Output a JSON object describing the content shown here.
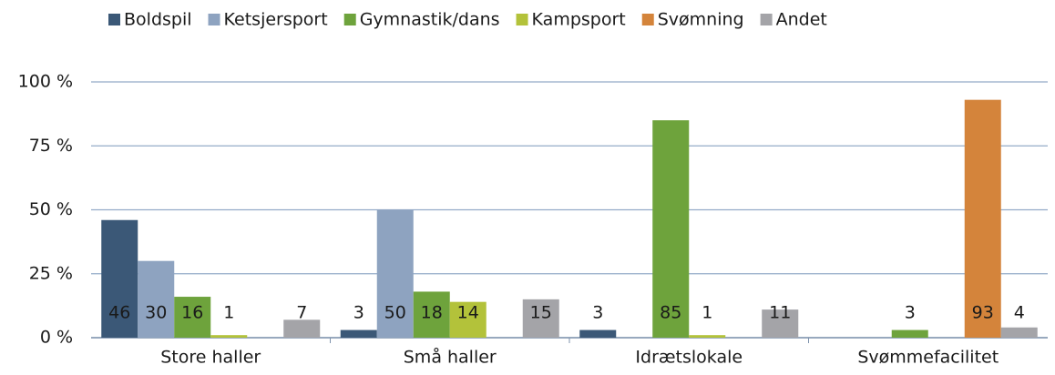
{
  "chart_data": {
    "type": "bar",
    "categories": [
      "Store haller",
      "Små haller",
      "Idrætslokale",
      "Svømmefacilitet"
    ],
    "series": [
      {
        "name": "Boldspil",
        "color": "#3b5877",
        "values": [
          46,
          3,
          3,
          null
        ]
      },
      {
        "name": "Ketsjersport",
        "color": "#8ea3c0",
        "values": [
          30,
          50,
          null,
          null
        ]
      },
      {
        "name": "Gymnastik/dans",
        "color": "#6ea33c",
        "values": [
          16,
          18,
          85,
          3
        ]
      },
      {
        "name": "Kampsport",
        "color": "#b3c23a",
        "values": [
          1,
          14,
          1,
          null
        ]
      },
      {
        "name": "Svømning",
        "color": "#d4843b",
        "values": [
          null,
          null,
          null,
          93
        ]
      },
      {
        "name": "Andet",
        "color": "#a4a4a8",
        "values": [
          7,
          15,
          11,
          4
        ]
      }
    ],
    "ylim": [
      0,
      100
    ],
    "yticks": [
      {
        "value": 0,
        "label": "0 %"
      },
      {
        "value": 25,
        "label": "25 %"
      },
      {
        "value": 50,
        "label": "50 %"
      },
      {
        "value": 75,
        "label": "75 %"
      },
      {
        "value": 100,
        "label": "100 %"
      }
    ],
    "grid": true,
    "legend": "top"
  }
}
